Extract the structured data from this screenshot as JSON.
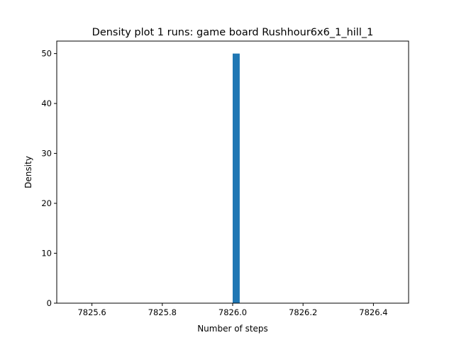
{
  "chart_data": {
    "type": "bar",
    "title": "Density plot 1 runs: game board Rushhour6x6_1_hill_1",
    "xlabel": "Number of steps",
    "ylabel": "Density",
    "xlim": [
      7825.5,
      7826.5
    ],
    "ylim": [
      0,
      52.5
    ],
    "x_ticks": [
      "7825.6",
      "7825.8",
      "7826.0",
      "7826.2",
      "7826.4"
    ],
    "x_tick_values": [
      7825.6,
      7825.8,
      7826.0,
      7826.2,
      7826.4
    ],
    "y_ticks": [
      "0",
      "10",
      "20",
      "30",
      "40",
      "50"
    ],
    "y_tick_values": [
      0,
      10,
      20,
      30,
      40,
      50
    ],
    "bars": [
      {
        "x_start": 7826.0,
        "x_end": 7826.02,
        "value": 50
      }
    ],
    "bar_color": "#1f77b4",
    "grid": false
  }
}
